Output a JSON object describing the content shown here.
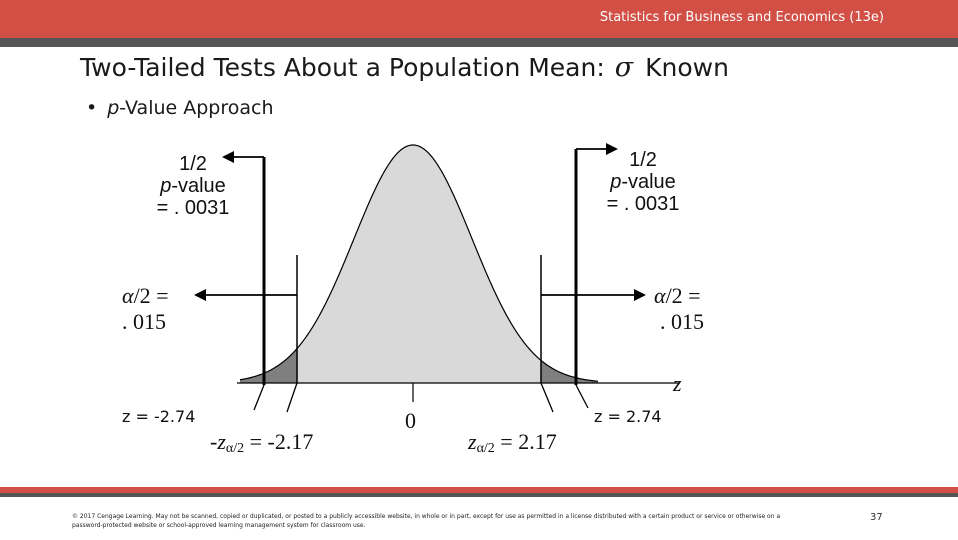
{
  "header": {
    "book_title": "Statistics for Business and Economics (13e)"
  },
  "slide": {
    "title": "Two-Tailed Tests About a Population Mean:",
    "title_symbol": "σ",
    "title_suffix": "Known",
    "bullet_mark": "•",
    "bullet_italic": "p",
    "bullet_text": "-Value Approach"
  },
  "diagram": {
    "left_pvalue": {
      "line1": "1/2",
      "line2_italic": "p",
      "line2_rest": "-value",
      "line3": "= . 0031"
    },
    "right_pvalue": {
      "line1": "1/2",
      "line2_italic": "p",
      "line2_rest": "-value",
      "line3": "= . 0031"
    },
    "left_alpha": {
      "symbol": "α",
      "rest": "/2 =",
      "value": ". 015"
    },
    "right_alpha": {
      "symbol": "α",
      "rest": "/2 =",
      "value": ". 015"
    },
    "axis_label": "z",
    "left_z_stat": "z = -2.74",
    "right_z_stat": "z = 2.74",
    "left_critical": {
      "prefix": "-",
      "var": "z",
      "sub": "α/2",
      "rest": "= -2.17"
    },
    "right_critical": {
      "var": "z",
      "sub": "α/2",
      "rest": "= 2.17"
    },
    "center_label": "0",
    "colors": {
      "curve_fill": "#d9d9d9",
      "tail_fill": "#7f7f7f",
      "line": "#000000"
    }
  },
  "footer": {
    "copyright": "© 2017 Cengage Learning. May not be scanned, copied or duplicated, or posted to a publicly accessible website, in whole or in part, except for use as permitted in a license distributed with a certain product or service or otherwise on a password-protected website or school-approved learning management system for classroom use.",
    "page_number": "37"
  }
}
